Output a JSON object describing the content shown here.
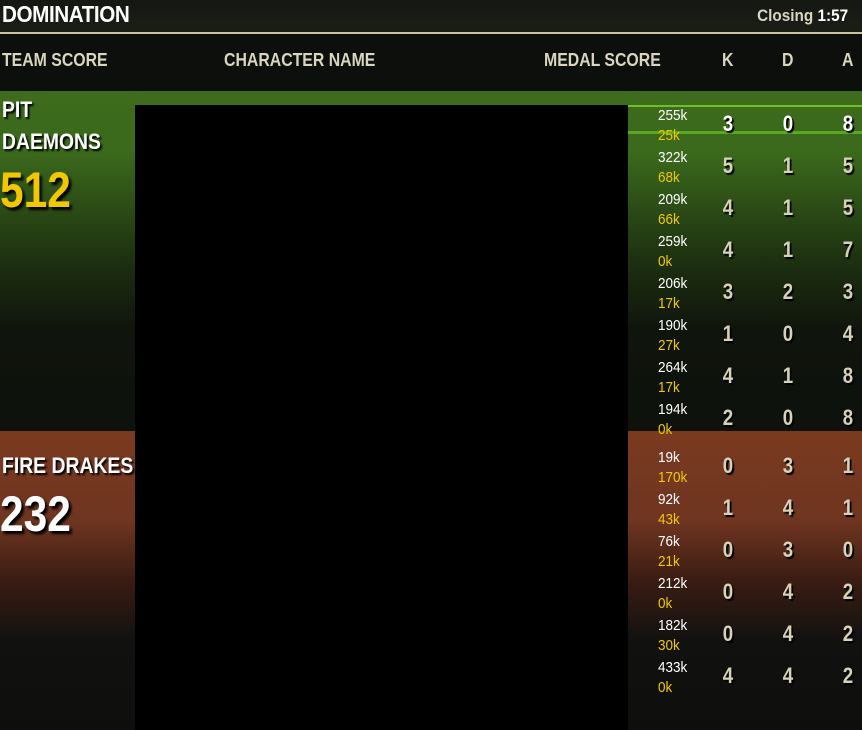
{
  "header": {
    "title": "DOMINATION",
    "closing_label": "Closing",
    "closing_time": "1:57"
  },
  "columns": {
    "team_score": "TEAM SCORE",
    "character_name": "CHARACTER NAME",
    "medal_score": "MEDAL SCORE",
    "k": "K",
    "d": "D",
    "a": "A"
  },
  "colors": {
    "team1": "#3e6b1c",
    "team2": "#7a3a20",
    "score_yellow": "#f1c800"
  },
  "teams": [
    {
      "name_line1": "PIT",
      "name_line2": "DAEMONS",
      "score": "512",
      "score_color": "#f1c800",
      "players": [
        {
          "damage": "255k",
          "healing": "25k",
          "k": "3",
          "d": "0",
          "a": "8"
        },
        {
          "damage": "322k",
          "healing": "68k",
          "k": "5",
          "d": "1",
          "a": "5"
        },
        {
          "damage": "209k",
          "healing": "66k",
          "k": "4",
          "d": "1",
          "a": "5"
        },
        {
          "damage": "259k",
          "healing": "0k",
          "k": "4",
          "d": "1",
          "a": "7"
        },
        {
          "damage": "206k",
          "healing": "17k",
          "k": "3",
          "d": "2",
          "a": "3"
        },
        {
          "damage": "190k",
          "healing": "27k",
          "k": "1",
          "d": "0",
          "a": "4"
        },
        {
          "damage": "264k",
          "healing": "17k",
          "k": "4",
          "d": "1",
          "a": "8"
        },
        {
          "damage": "194k",
          "healing": "0k",
          "k": "2",
          "d": "0",
          "a": "8"
        }
      ]
    },
    {
      "name_line1": "FIRE DRAKES",
      "name_line2": "",
      "score": "232",
      "score_color": "#ffffff",
      "players": [
        {
          "damage": "19k",
          "healing": "170k",
          "k": "0",
          "d": "3",
          "a": "1"
        },
        {
          "damage": "92k",
          "healing": "43k",
          "k": "1",
          "d": "4",
          "a": "1"
        },
        {
          "damage": "76k",
          "healing": "21k",
          "k": "0",
          "d": "3",
          "a": "0"
        },
        {
          "damage": "212k",
          "healing": "0k",
          "k": "0",
          "d": "4",
          "a": "2"
        },
        {
          "damage": "182k",
          "healing": "30k",
          "k": "0",
          "d": "4",
          "a": "2"
        },
        {
          "damage": "433k",
          "healing": "0k",
          "k": "4",
          "d": "4",
          "a": "2"
        }
      ]
    }
  ]
}
